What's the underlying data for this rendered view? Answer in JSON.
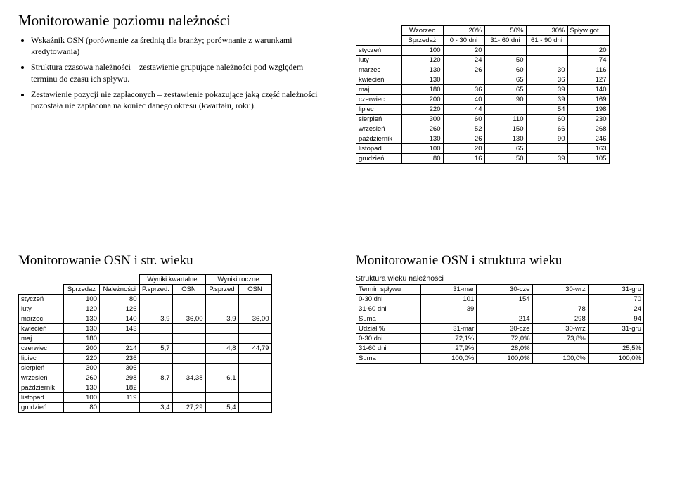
{
  "q1": {
    "title": "Monitorowanie poziomu należności",
    "bullets": [
      "Wskaźnik OSN (porównanie za średnią dla branży; porównanie z warunkami kredytowania)",
      "Struktura czasowa należności – zestawienie grupujące należności pod względem terminu do czasu ich spływu.",
      "Zestawienie pozycji nie zapłaconych – zestawienie pokazujące jaką część należności pozostała nie zapłacona na koniec danego okresu (kwartału, roku)."
    ]
  },
  "q2": {
    "headers": {
      "wz": "Wzorzec",
      "p20": "20%",
      "p50": "50%",
      "p30": "30%",
      "spl": "Spływ got",
      "sp": "Sprzedaż",
      "d1": "0 - 30 dni",
      "d2": "31- 60 dni",
      "d3": "61 - 90 dni"
    },
    "rows": [
      {
        "m": "styczeń",
        "a": "100",
        "b": "20",
        "c": "",
        "d": "",
        "e": "20"
      },
      {
        "m": "luty",
        "a": "120",
        "b": "24",
        "c": "50",
        "d": "",
        "e": "74"
      },
      {
        "m": "marzec",
        "a": "130",
        "b": "26",
        "c": "60",
        "d": "30",
        "e": "116"
      },
      {
        "m": "kwiecień",
        "a": "130",
        "b": "",
        "c": "65",
        "d": "36",
        "e": "127"
      },
      {
        "m": "maj",
        "a": "180",
        "b": "36",
        "c": "65",
        "d": "39",
        "e": "140"
      },
      {
        "m": "czerwiec",
        "a": "200",
        "b": "40",
        "c": "90",
        "d": "39",
        "e": "169"
      },
      {
        "m": "lipiec",
        "a": "220",
        "b": "44",
        "c": "",
        "d": "54",
        "e": "198"
      },
      {
        "m": "sierpień",
        "a": "300",
        "b": "60",
        "c": "110",
        "d": "60",
        "e": "230"
      },
      {
        "m": "wrzesień",
        "a": "260",
        "b": "52",
        "c": "150",
        "d": "66",
        "e": "268"
      },
      {
        "m": "październik",
        "a": "130",
        "b": "26",
        "c": "130",
        "d": "90",
        "e": "246"
      },
      {
        "m": "listopad",
        "a": "100",
        "b": "20",
        "c": "65",
        "d": "",
        "e": "163"
      },
      {
        "m": "grudzień",
        "a": "80",
        "b": "16",
        "c": "50",
        "d": "39",
        "e": "105"
      }
    ]
  },
  "q3": {
    "title": "Monitorowanie OSN i str. wieku",
    "headers": {
      "wk": "Wyniki kwartalne",
      "wr": "Wyniki roczne",
      "sp": "Sprzedaż",
      "na": "Należności",
      "ps": "P.sprzed.",
      "osn": "OSN",
      "ps2": "P.sprzed",
      "osn2": "OSN"
    },
    "rows": [
      {
        "m": "styczeń",
        "a": "100",
        "b": "80",
        "c": "",
        "d": "",
        "e": "",
        "f": ""
      },
      {
        "m": "luty",
        "a": "120",
        "b": "126",
        "c": "",
        "d": "",
        "e": "",
        "f": ""
      },
      {
        "m": "marzec",
        "a": "130",
        "b": "140",
        "c": "3,9",
        "d": "36,00",
        "e": "3,9",
        "f": "36,00"
      },
      {
        "m": "kwiecień",
        "a": "130",
        "b": "143",
        "c": "",
        "d": "",
        "e": "",
        "f": ""
      },
      {
        "m": "maj",
        "a": "180",
        "b": "",
        "c": "",
        "d": "",
        "e": "",
        "f": ""
      },
      {
        "m": "czerwiec",
        "a": "200",
        "b": "214",
        "c": "5,7",
        "d": "",
        "e": "4,8",
        "f": "44,79"
      },
      {
        "m": "lipiec",
        "a": "220",
        "b": "236",
        "c": "",
        "d": "",
        "e": "",
        "f": ""
      },
      {
        "m": "sierpień",
        "a": "300",
        "b": "306",
        "c": "",
        "d": "",
        "e": "",
        "f": ""
      },
      {
        "m": "wrzesień",
        "a": "260",
        "b": "298",
        "c": "8,7",
        "d": "34,38",
        "e": "6,1",
        "f": ""
      },
      {
        "m": "październik",
        "a": "130",
        "b": "182",
        "c": "",
        "d": "",
        "e": "",
        "f": ""
      },
      {
        "m": "listopad",
        "a": "100",
        "b": "119",
        "c": "",
        "d": "",
        "e": "",
        "f": ""
      },
      {
        "m": "grudzień",
        "a": "80",
        "b": "",
        "c": "3,4",
        "d": "27,29",
        "e": "5,4",
        "f": ""
      }
    ]
  },
  "q4": {
    "title": "Monitorowanie OSN i struktura wieku",
    "caption": "Struktura wieku należności",
    "headers": {
      "ts": "Termin spływu",
      "c1": "31-mar",
      "c2": "30-cze",
      "c3": "30-wrz",
      "c4": "31-gru"
    },
    "rows1": [
      {
        "l": "0-30 dni",
        "a": "101",
        "b": "154",
        "c": "",
        "d": "70"
      },
      {
        "l": "31-60 dni",
        "a": "39",
        "b": "",
        "c": "78",
        "d": "24"
      },
      {
        "l": "Suma",
        "a": "",
        "b": "214",
        "c": "298",
        "d": "94"
      }
    ],
    "headers2": {
      "ud": "Udział %",
      "c1": "31-mar",
      "c2": "30-cze",
      "c3": "30-wrz",
      "c4": "31-gru"
    },
    "rows2": [
      {
        "l": "0-30 dni",
        "a": "72,1%",
        "b": "72,0%",
        "c": "73,8%",
        "d": ""
      },
      {
        "l": "31-60 dni",
        "a": "27,9%",
        "b": "28,0%",
        "c": "",
        "d": "25,5%"
      },
      {
        "l": "Suma",
        "a": "100,0%",
        "b": "100,0%",
        "c": "100,0%",
        "d": "100,0%"
      }
    ]
  }
}
